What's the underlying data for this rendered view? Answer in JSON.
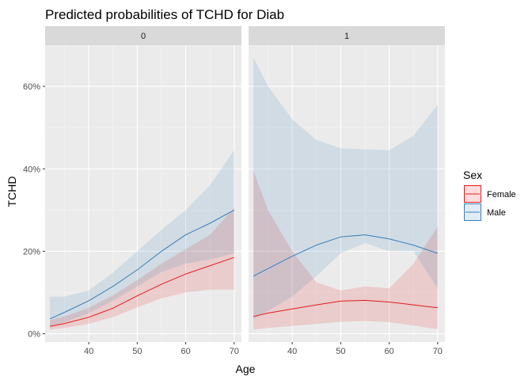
{
  "chart_data": {
    "type": "line",
    "title": "Predicted probabilities of TCHD for Diab",
    "xlabel": "Age",
    "ylabel": "TCHD",
    "xlim": [
      31,
      71.5
    ],
    "ylim": [
      -0.02,
      0.7
    ],
    "x_ticks": [
      40,
      50,
      60,
      70
    ],
    "y_ticks": [
      0,
      0.2,
      0.4,
      0.6
    ],
    "y_tick_labels": [
      "0%",
      "20%",
      "40%",
      "60%"
    ],
    "grid": true,
    "facet_variable": "Diab",
    "legend": {
      "title": "Sex",
      "position": "right"
    },
    "colors": {
      "Female": "#e41a1c",
      "Male": "#377eb8",
      "panel_bg": "#ebebeb",
      "strip_bg": "#d9d9d9"
    },
    "panels": [
      {
        "label": "0",
        "series": [
          {
            "name": "Female",
            "x": [
              32,
              35,
              40,
              45,
              50,
              55,
              60,
              65,
              70
            ],
            "y": [
              0.018,
              0.025,
              0.04,
              0.062,
              0.092,
              0.12,
              0.145,
              0.165,
              0.185
            ],
            "lower": [
              0.01,
              0.014,
              0.024,
              0.04,
              0.064,
              0.086,
              0.1,
              0.107,
              0.107
            ],
            "upper": [
              0.033,
              0.042,
              0.063,
              0.093,
              0.13,
              0.17,
              0.205,
              0.24,
              0.305
            ]
          },
          {
            "name": "Male",
            "x": [
              32,
              35,
              40,
              45,
              50,
              55,
              60,
              65,
              70
            ],
            "y": [
              0.036,
              0.052,
              0.08,
              0.115,
              0.155,
              0.2,
              0.24,
              0.268,
              0.3
            ],
            "lower": [
              0.018,
              0.028,
              0.05,
              0.08,
              0.115,
              0.15,
              0.17,
              0.18,
              0.195
            ],
            "upper": [
              0.09,
              0.09,
              0.105,
              0.148,
              0.2,
              0.252,
              0.3,
              0.36,
              0.445
            ]
          }
        ]
      },
      {
        "label": "1",
        "series": [
          {
            "name": "Female",
            "x": [
              32,
              35,
              40,
              45,
              50,
              55,
              60,
              65,
              70
            ],
            "y": [
              0.042,
              0.05,
              0.06,
              0.07,
              0.079,
              0.081,
              0.077,
              0.07,
              0.063
            ],
            "lower": [
              0.01,
              0.014,
              0.019,
              0.024,
              0.029,
              0.031,
              0.028,
              0.02,
              0.011
            ],
            "upper": [
              0.395,
              0.3,
              0.2,
              0.125,
              0.105,
              0.115,
              0.11,
              0.17,
              0.26
            ]
          },
          {
            "name": "Male",
            "x": [
              32,
              35,
              40,
              45,
              50,
              55,
              60,
              65,
              70
            ],
            "y": [
              0.14,
              0.158,
              0.188,
              0.215,
              0.235,
              0.24,
              0.23,
              0.215,
              0.195
            ],
            "lower": [
              0.035,
              0.055,
              0.09,
              0.14,
              0.195,
              0.22,
              0.2,
              0.2,
              0.11
            ],
            "upper": [
              0.67,
              0.6,
              0.52,
              0.47,
              0.45,
              0.447,
              0.445,
              0.48,
              0.555
            ]
          }
        ]
      }
    ]
  }
}
